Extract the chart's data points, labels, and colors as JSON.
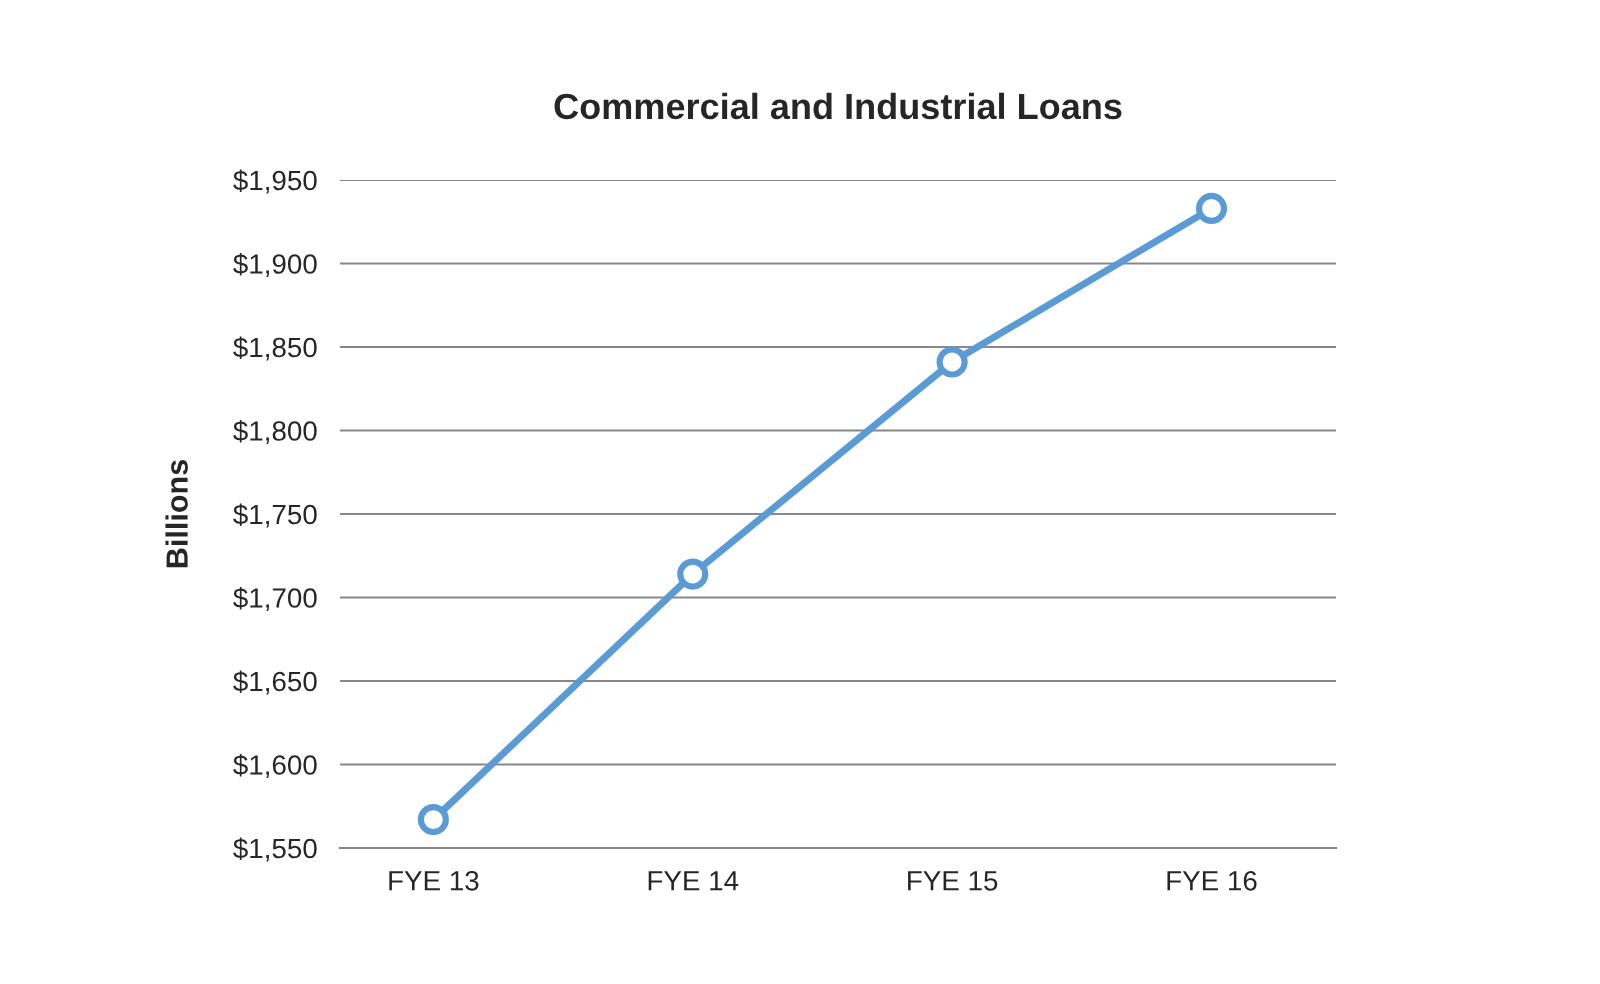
{
  "chart_data": {
    "type": "line",
    "title": "Commercial and Industrial Loans",
    "ylabel": "Billions",
    "categories": [
      "FYE 13",
      "FYE 14",
      "FYE 15",
      "FYE 16"
    ],
    "series": [
      {
        "color": "#5b9bd5",
        "values": [
          1567,
          1714,
          1841,
          1933
        ]
      }
    ],
    "ylim": [
      1550,
      1950
    ],
    "yticks": [
      {
        "value": 1550,
        "label": "$1,550"
      },
      {
        "value": 1600,
        "label": "$1,600"
      },
      {
        "value": 1650,
        "label": "$1,650"
      },
      {
        "value": 1700,
        "label": "$1,700"
      },
      {
        "value": 1750,
        "label": "$1,750"
      },
      {
        "value": 1800,
        "label": "$1,800"
      },
      {
        "value": 1850,
        "label": "$1,850"
      },
      {
        "value": 1900,
        "label": "$1,900"
      },
      {
        "value": 1950,
        "label": "$1,950"
      }
    ],
    "grid": "y",
    "marker": "circle",
    "line_style": "solid"
  }
}
